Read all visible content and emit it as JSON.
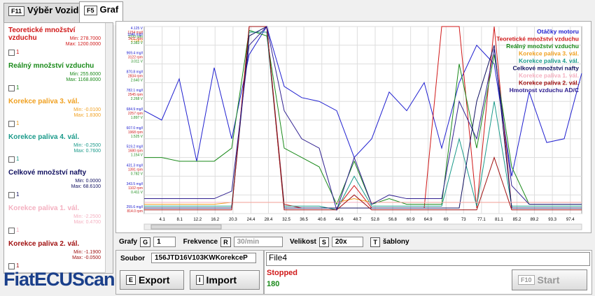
{
  "tabs": [
    {
      "key": "F11",
      "label": "Výběr Vozidla"
    },
    {
      "key": "F5",
      "label": "Graf"
    }
  ],
  "sidebar": [
    {
      "name": "Teoretické množství vzduchu",
      "color": "#d01818",
      "min": "Min: 278.7000",
      "max": "Max: 1200.0000",
      "check": "1"
    },
    {
      "name": "Reálný množství vzduchu",
      "color": "#1a8a1a",
      "min": "Min: 255.6000",
      "max": "Max: 1168.8000",
      "check": "1"
    },
    {
      "name": "Korekce paliva 3. vál.",
      "color": "#f0a020",
      "min": "Min: -0.0100",
      "max": "Max: 1.8300",
      "check": "1"
    },
    {
      "name": "Korekce paliva 4. vál.",
      "color": "#1a9a8a",
      "min": "Min: -0.2500",
      "max": "Max: 0.7600",
      "check": "1"
    },
    {
      "name": "Celkové množství nafty",
      "color": "#101060",
      "min": "Min: 0.0000",
      "max": "Max: 68.6100",
      "check": "1"
    },
    {
      "name": "Korekce paliva 1. vál.",
      "color": "#f4b0c0",
      "min": "Min: -2.2500",
      "max": "Max: 0.4700",
      "check": "1"
    },
    {
      "name": "Korekce paliva 2. vál.",
      "color": "#a01010",
      "min": "Min: -1.1900",
      "max": "Max: -0.0500",
      "check": "1"
    }
  ],
  "graph": {
    "type": "line",
    "xlim": [
      0,
      100
    ],
    "ylim": [
      0,
      100
    ],
    "grid": true,
    "xticks": [
      4.1,
      8.1,
      12.2,
      16.2,
      20.3,
      24.4,
      28.4,
      32.5,
      36.5,
      40.6,
      44.6,
      48.7,
      52.8,
      56.8,
      60.9,
      64.9,
      69.0,
      73.0,
      77.1,
      81.1,
      85.2,
      89.2,
      93.3,
      97.4
    ],
    "yticks": [
      {
        "value": 100,
        "lines": [
          "4.125 V",
          "1154 mg/l",
          "3700 rpm",
          "3.754 V"
        ]
      },
      {
        "value": 90,
        "lines": [
          "1046 mg/l",
          "3411 rpm",
          "3.383 V"
        ]
      },
      {
        "value": 80,
        "lines": [
          "969.4 mg/l",
          "3122 rpm",
          "3.011 V"
        ]
      },
      {
        "value": 70,
        "lines": [
          "870.8 mg/l",
          "2834 rpm",
          "2.640 V"
        ]
      },
      {
        "value": 60,
        "lines": [
          "782.1 mg/l",
          "2545 rpm",
          "2.268 V"
        ]
      },
      {
        "value": 50,
        "lines": [
          "684.9 mg/l",
          "2257 rpm",
          "1.897 V"
        ]
      },
      {
        "value": 40,
        "lines": [
          "607.0 mg/l",
          "1968 rpm",
          "1.525 V"
        ]
      },
      {
        "value": 30,
        "lines": [
          "519.2 mg/l",
          "1680 rpm",
          "1.154 V"
        ]
      },
      {
        "value": 20,
        "lines": [
          "431.3 mg/l",
          "1391 rpm",
          "0.782 V"
        ]
      },
      {
        "value": 10,
        "lines": [
          "343.5 mg/l",
          "1102 rpm",
          "0.411 V"
        ]
      },
      {
        "value": 0,
        "lines": [
          "255.6 mg/l",
          "814.0 rpm"
        ]
      }
    ],
    "x": [
      0,
      4,
      8,
      12,
      16,
      20,
      24,
      28,
      32,
      36,
      40,
      44,
      48,
      52,
      56,
      60,
      64,
      68,
      72,
      76,
      80,
      84,
      88,
      92,
      96,
      100
    ],
    "series": [
      {
        "name": "Otáčky motoru",
        "color": "#2020d0",
        "values": [
          55,
          50,
          72,
          28,
          78,
          40,
          85,
          100,
          68,
          62,
          60,
          55,
          30,
          40,
          65,
          55,
          70,
          35,
          70,
          90,
          80,
          20,
          65,
          38,
          40,
          75
        ]
      },
      {
        "name": "Teoretické množství vzduchu",
        "color": "#d01818",
        "values": [
          3,
          3,
          3,
          3,
          3,
          3,
          100,
          100,
          5,
          3,
          3,
          3,
          15,
          3,
          3,
          3,
          3,
          100,
          100,
          3,
          100,
          3,
          3,
          3,
          3,
          3
        ]
      },
      {
        "name": "Reálný množství vzduchu",
        "color": "#1a8a1a",
        "values": [
          30,
          30,
          28,
          28,
          28,
          35,
          98,
          95,
          35,
          30,
          25,
          5,
          28,
          5,
          8,
          5,
          5,
          5,
          80,
          35,
          85,
          25,
          5,
          5,
          5,
          5
        ]
      },
      {
        "name": "Korekce paliva 3. vál.",
        "color": "#f0a020",
        "values": [
          5,
          5,
          5,
          5,
          5,
          6,
          6,
          6,
          6,
          6,
          6,
          6,
          8,
          6,
          6,
          6,
          6,
          6,
          6,
          6,
          6,
          6,
          6,
          6,
          6,
          6
        ]
      },
      {
        "name": "Korekce paliva 4. vál.",
        "color": "#1a9a8a",
        "values": [
          4,
          4,
          4,
          4,
          4,
          4,
          97,
          97,
          4,
          4,
          4,
          2,
          20,
          4,
          4,
          4,
          4,
          4,
          40,
          4,
          60,
          4,
          4,
          4,
          4,
          4
        ]
      },
      {
        "name": "Celkové množství nafty",
        "color": "#101060",
        "values": [
          3,
          3,
          3,
          3,
          3,
          3,
          95,
          100,
          3,
          3,
          3,
          3,
          3,
          3,
          3,
          3,
          3,
          3,
          3,
          60,
          90,
          3,
          3,
          3,
          3,
          3
        ]
      },
      {
        "name": "Korekce paliva 1. vál.",
        "color": "#f4b0c0",
        "values": [
          6,
          6,
          6,
          6,
          6,
          6,
          6,
          6,
          6,
          6,
          6,
          6,
          6,
          6,
          6,
          6,
          6,
          6,
          6,
          6,
          6,
          6,
          6,
          6,
          6,
          6
        ]
      },
      {
        "name": "Korekce paliva 2. vál.",
        "color": "#a01010",
        "values": [
          2,
          2,
          2,
          2,
          2,
          2,
          100,
          100,
          2,
          2,
          2,
          2,
          10,
          2,
          2,
          2,
          2,
          2,
          2,
          2,
          30,
          2,
          2,
          2,
          2,
          2
        ]
      },
      {
        "name": "Hmotnost vzduchu AD/C",
        "color": "#302090",
        "values": [
          8,
          8,
          8,
          8,
          8,
          12,
          90,
          100,
          55,
          40,
          35,
          2,
          30,
          5,
          10,
          8,
          8,
          8,
          60,
          40,
          88,
          15,
          5,
          5,
          5,
          5
        ]
      }
    ]
  },
  "controls": {
    "graphs_label": "Grafy",
    "graphs_key": "G",
    "graphs_value": "1",
    "freq_label": "Frekvence",
    "freq_key": "R",
    "freq_value": "30/min",
    "size_label": "Velikost",
    "size_key": "S",
    "size_value": "20x",
    "templates_key": "T",
    "templates_label": "šablony"
  },
  "file": {
    "label": "Soubor",
    "value": "156JTD16V103KWKorekceP",
    "export_key": "E",
    "export": "Export",
    "import_key": "I",
    "import": "Import"
  },
  "status": {
    "file_name": "File4",
    "state": "Stopped",
    "count": "180",
    "start_key": "F10",
    "start": "Start"
  },
  "logo": "FiatECUScan"
}
